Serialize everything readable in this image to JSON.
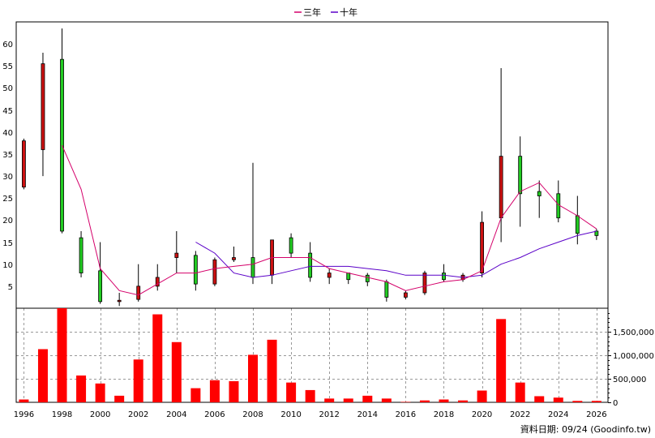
{
  "chart_data": {
    "type": "candlestick+bar",
    "legend": [
      {
        "label": "三年",
        "color": "#d4006a"
      },
      {
        "label": "十年",
        "color": "#5a00c8"
      }
    ],
    "price_axis": {
      "ylim": [
        0,
        65
      ],
      "ticks": [
        5,
        10,
        15,
        20,
        25,
        30,
        35,
        40,
        45,
        50,
        55,
        60
      ]
    },
    "volume_axis": {
      "ylim": [
        0,
        2000000
      ],
      "ticks": [
        0,
        500000,
        1000000,
        1500000
      ],
      "tick_labels": [
        "0",
        "500,000",
        "1,000,000",
        "1,500,000"
      ]
    },
    "x_axis": {
      "xlim": [
        1995.6,
        2026.6
      ],
      "ticks": [
        1996,
        1998,
        2000,
        2002,
        2004,
        2006,
        2008,
        2010,
        2012,
        2014,
        2016,
        2018,
        2020,
        2022,
        2024,
        2026
      ],
      "tick_labels": [
        "1996",
        "1998",
        "2000",
        "2002",
        "2004",
        "2006",
        "2008",
        "2010",
        "2012",
        "2014",
        "2016",
        "2018",
        "2020",
        "2022",
        "2024",
        "2026"
      ]
    },
    "candles": [
      {
        "year": 1996,
        "open": 27.5,
        "high": 38.5,
        "low": 27.0,
        "close": 38.0
      },
      {
        "year": 1997,
        "open": 36.0,
        "high": 58.0,
        "low": 30.0,
        "close": 55.5
      },
      {
        "year": 1998,
        "open": 56.5,
        "high": 63.5,
        "low": 17.0,
        "close": 17.5
      },
      {
        "year": 1999,
        "open": 16.0,
        "high": 17.5,
        "low": 7.0,
        "close": 8.0
      },
      {
        "year": 2000,
        "open": 8.5,
        "high": 15.0,
        "low": 1.0,
        "close": 1.5
      },
      {
        "year": 2001,
        "open": 1.5,
        "high": 3.5,
        "low": 0.5,
        "close": 1.8
      },
      {
        "year": 2002,
        "open": 2.0,
        "high": 10.0,
        "low": 1.5,
        "close": 5.0
      },
      {
        "year": 2003,
        "open": 5.0,
        "high": 10.0,
        "low": 4.0,
        "close": 7.0
      },
      {
        "year": 2004,
        "open": 11.5,
        "high": 17.5,
        "low": 8.0,
        "close": 12.5
      },
      {
        "year": 2005,
        "open": 12.0,
        "high": 13.0,
        "low": 4.0,
        "close": 5.5
      },
      {
        "year": 2006,
        "open": 5.5,
        "high": 11.5,
        "low": 5.0,
        "close": 11.0
      },
      {
        "year": 2007,
        "open": 11.0,
        "high": 14.0,
        "low": 10.5,
        "close": 11.5
      },
      {
        "year": 2008,
        "open": 11.5,
        "high": 33.0,
        "low": 5.5,
        "close": 7.0
      },
      {
        "year": 2009,
        "open": 7.5,
        "high": 15.5,
        "low": 5.5,
        "close": 15.5
      },
      {
        "year": 2010,
        "open": 16.0,
        "high": 17.0,
        "low": 11.5,
        "close": 12.5
      },
      {
        "year": 2011,
        "open": 12.5,
        "high": 15.0,
        "low": 6.0,
        "close": 7.0
      },
      {
        "year": 2012,
        "open": 7.0,
        "high": 9.0,
        "low": 5.5,
        "close": 8.0
      },
      {
        "year": 2013,
        "open": 8.0,
        "high": 8.0,
        "low": 5.5,
        "close": 6.5
      },
      {
        "year": 2014,
        "open": 7.5,
        "high": 8.0,
        "low": 5.0,
        "close": 6.0
      },
      {
        "year": 2015,
        "open": 6.0,
        "high": 6.5,
        "low": 1.5,
        "close": 2.5
      },
      {
        "year": 2016,
        "open": 2.5,
        "high": 4.0,
        "low": 2.0,
        "close": 3.5
      },
      {
        "year": 2017,
        "open": 3.5,
        "high": 8.5,
        "low": 3.0,
        "close": 8.0
      },
      {
        "year": 2018,
        "open": 8.0,
        "high": 10.0,
        "low": 6.0,
        "close": 6.5
      },
      {
        "year": 2019,
        "open": 6.5,
        "high": 8.0,
        "low": 6.0,
        "close": 7.5
      },
      {
        "year": 2020,
        "open": 8.0,
        "high": 22.0,
        "low": 7.0,
        "close": 19.5
      },
      {
        "year": 2021,
        "open": 20.5,
        "high": 54.5,
        "low": 15.0,
        "close": 34.5
      },
      {
        "year": 2022,
        "open": 34.5,
        "high": 39.0,
        "low": 18.5,
        "close": 26.0
      },
      {
        "year": 2023,
        "open": 26.5,
        "high": 29.0,
        "low": 20.5,
        "close": 25.5
      },
      {
        "year": 2024,
        "open": 26.0,
        "high": 29.0,
        "low": 19.5,
        "close": 20.5
      },
      {
        "year": 2025,
        "open": 21.0,
        "high": 25.5,
        "low": 14.5,
        "close": 17.0
      },
      {
        "year": 2026,
        "open": 17.5,
        "high": 18.0,
        "low": 15.5,
        "close": 16.5
      }
    ],
    "ma_3y": {
      "name": "三年",
      "x": [
        1998,
        1999,
        2000,
        2001,
        2002,
        2003,
        2004,
        2005,
        2006,
        2007,
        2008,
        2009,
        2010,
        2011,
        2012,
        2013,
        2014,
        2015,
        2016,
        2017,
        2018,
        2019,
        2020,
        2021,
        2022,
        2023,
        2024,
        2025,
        2026
      ],
      "y": [
        37.0,
        27.0,
        9.0,
        4.0,
        3.0,
        5.5,
        8.0,
        8.0,
        9.0,
        9.5,
        10.0,
        11.5,
        11.5,
        11.5,
        9.0,
        8.0,
        7.0,
        6.0,
        4.0,
        5.0,
        6.0,
        6.5,
        8.5,
        20.5,
        26.5,
        28.5,
        23.5,
        21.0,
        18.0
      ]
    },
    "ma_10y": {
      "name": "十年",
      "x": [
        2005,
        2006,
        2007,
        2008,
        2009,
        2010,
        2011,
        2012,
        2013,
        2014,
        2015,
        2016,
        2017,
        2018,
        2019,
        2020,
        2021,
        2022,
        2023,
        2024,
        2025,
        2026
      ],
      "y": [
        15.0,
        12.5,
        8.0,
        7.0,
        7.5,
        8.5,
        9.5,
        9.5,
        9.5,
        9.0,
        8.5,
        7.5,
        7.5,
        7.5,
        7.0,
        7.5,
        10.0,
        11.5,
        13.5,
        15.0,
        16.5,
        17.5
      ]
    },
    "volume": {
      "years": [
        1996,
        1997,
        1998,
        1999,
        2000,
        2001,
        2002,
        2003,
        2004,
        2005,
        2006,
        2007,
        2008,
        2009,
        2010,
        2011,
        2012,
        2013,
        2014,
        2015,
        2016,
        2017,
        2018,
        2019,
        2020,
        2021,
        2022,
        2023,
        2024,
        2025,
        2026
      ],
      "values": [
        60000,
        1130000,
        2000000,
        570000,
        400000,
        140000,
        910000,
        1870000,
        1280000,
        300000,
        470000,
        450000,
        1010000,
        1330000,
        420000,
        260000,
        80000,
        80000,
        140000,
        80000,
        10000,
        40000,
        60000,
        40000,
        250000,
        1770000,
        420000,
        130000,
        100000,
        30000,
        30000
      ]
    },
    "up_color": "#cc1111",
    "down_color": "#22cc22",
    "volume_color": "#ff0000"
  },
  "footer": {
    "label": "資料日期: 09/24  (Goodinfo.tw)"
  }
}
